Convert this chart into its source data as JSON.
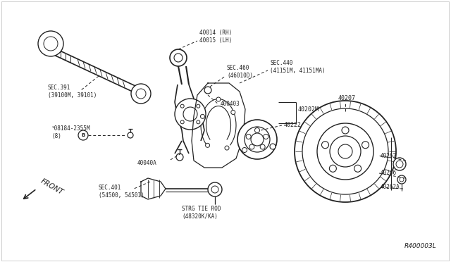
{
  "bg_color": "#ffffff",
  "lc": "#222222",
  "tc": "#222222",
  "fig_width": 6.4,
  "fig_height": 3.72,
  "dpi": 100,
  "labels": {
    "part_40014": "40014 (RH)\n40015 (LH)",
    "sec_391": "SEC.391\n(39100M, 39101)",
    "bolt_b": "¹08184-2355M\n(8)",
    "part_40040a": "40040A",
    "sec_460": "SEC.460\n(46010D)",
    "part_400403": "400403",
    "sec_440": "SEC.440\n(41151M, 41151MA)",
    "part_40202m": "40202M",
    "part_40222": "40222",
    "part_40207": "40207",
    "sec_401": "SEC.401\n(54500, 54501)",
    "strg_tie_rod": "STRG TIE ROD\n(48320K/KA)",
    "part_40262": "40262",
    "part_40266": "40266",
    "part_40262a": "40262A",
    "front_label": "FRONT",
    "ref_code": "R400003L"
  }
}
